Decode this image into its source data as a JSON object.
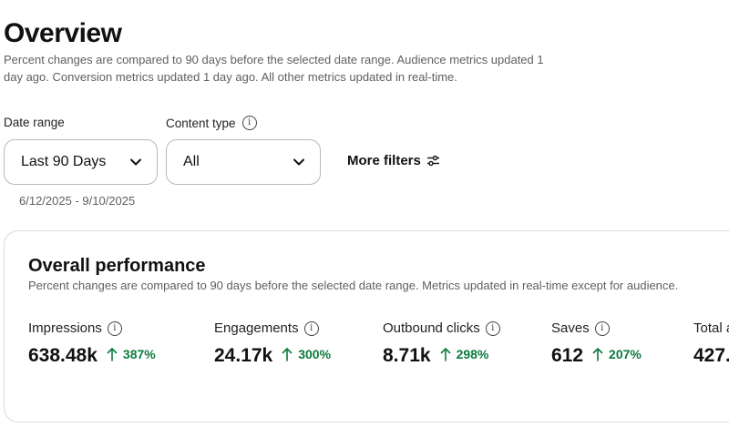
{
  "header": {
    "title": "Overview",
    "subtitle": "Percent changes are compared to 90 days before the selected date range. Audience metrics updated 1 day ago. Conversion metrics updated 1 day ago. All other metrics updated in real-time."
  },
  "filters": {
    "date_range": {
      "label": "Date range",
      "value": "Last 90 Days",
      "dates": "6/12/2025 - 9/10/2025"
    },
    "content_type": {
      "label": "Content type",
      "value": "All"
    },
    "more_filters_label": "More filters"
  },
  "performance": {
    "title": "Overall performance",
    "subtitle": "Percent changes are compared to 90 days before the selected date range. Metrics updated in real-time except for audience.",
    "metrics": [
      {
        "label": "Impressions",
        "value": "638.48k",
        "change": "387%"
      },
      {
        "label": "Engagements",
        "value": "24.17k",
        "change": "300%"
      },
      {
        "label": "Outbound clicks",
        "value": "8.71k",
        "change": "298%"
      },
      {
        "label": "Saves",
        "value": "612",
        "change": "207%"
      },
      {
        "label": "Total a",
        "value": "427.",
        "change": ""
      }
    ]
  },
  "colors": {
    "positive_change": "#0b7a3e",
    "text_secondary": "#5f5f5f",
    "border": "#b8b8b8"
  },
  "icons": {
    "info": "info-icon",
    "chevron": "chevron-down-icon",
    "filters": "sliders-icon",
    "increase": "arrow-up-icon"
  }
}
